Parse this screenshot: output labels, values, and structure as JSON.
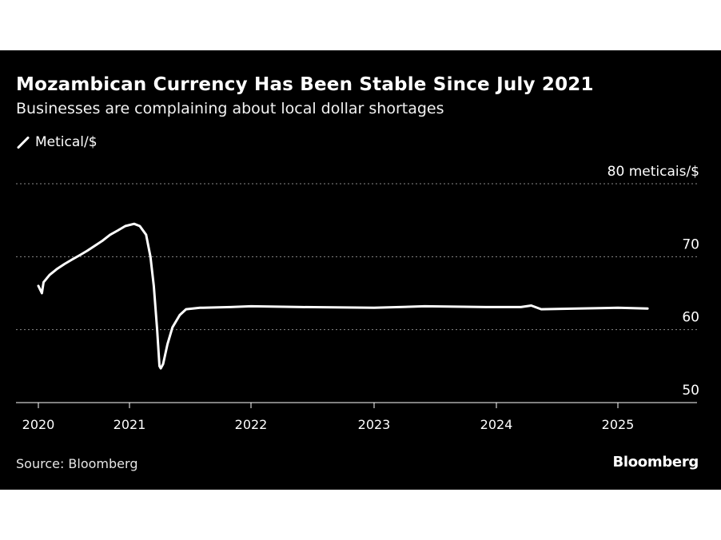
{
  "chart_data": {
    "type": "line",
    "title": "Mozambican Currency Has Been Stable Since July 2021",
    "subtitle": "Businesses are complaining about local dollar shortages",
    "legend": [
      "Metical/$"
    ],
    "ylabel_unit": "meticais/$",
    "ylim": [
      50,
      80
    ],
    "yticks": [
      50,
      60,
      70,
      80
    ],
    "ytick_labels": [
      "50",
      "60",
      "70",
      "80 meticais/$"
    ],
    "xticks": [
      "2020",
      "2021",
      "2022",
      "2023",
      "2024",
      "2025"
    ],
    "grid": true,
    "series": [
      {
        "name": "Metical/$",
        "color": "#ffffff",
        "points": [
          [
            "2020-01-01",
            66.0
          ],
          [
            "2020-01-15",
            65.0
          ],
          [
            "2020-01-22",
            66.5
          ],
          [
            "2020-02-15",
            67.5
          ],
          [
            "2020-03-15",
            68.3
          ],
          [
            "2020-04-15",
            69.0
          ],
          [
            "2020-05-15",
            69.6
          ],
          [
            "2020-06-15",
            70.2
          ],
          [
            "2020-07-15",
            70.8
          ],
          [
            "2020-08-15",
            71.5
          ],
          [
            "2020-09-15",
            72.2
          ],
          [
            "2020-10-15",
            73.0
          ],
          [
            "2020-11-15",
            73.6
          ],
          [
            "2020-12-15",
            74.2
          ],
          [
            "2021-01-15",
            74.5
          ],
          [
            "2021-02-01",
            74.2
          ],
          [
            "2021-02-20",
            73.0
          ],
          [
            "2021-03-05",
            70.0
          ],
          [
            "2021-03-15",
            66.0
          ],
          [
            "2021-03-25",
            60.0
          ],
          [
            "2021-04-01",
            55.0
          ],
          [
            "2021-04-05",
            54.7
          ],
          [
            "2021-04-12",
            55.3
          ],
          [
            "2021-04-25",
            58.0
          ],
          [
            "2021-05-10",
            60.3
          ],
          [
            "2021-06-01",
            62.0
          ],
          [
            "2021-06-20",
            62.8
          ],
          [
            "2021-08-01",
            63.0
          ],
          [
            "2021-11-01",
            63.1
          ],
          [
            "2022-01-01",
            63.2
          ],
          [
            "2022-06-01",
            63.1
          ],
          [
            "2023-01-01",
            63.0
          ],
          [
            "2023-06-01",
            63.2
          ],
          [
            "2023-12-01",
            63.1
          ],
          [
            "2024-03-15",
            63.1
          ],
          [
            "2024-04-15",
            63.3
          ],
          [
            "2024-05-15",
            62.8
          ],
          [
            "2024-09-01",
            62.9
          ],
          [
            "2025-01-01",
            63.0
          ],
          [
            "2025-03-31",
            62.9
          ]
        ]
      }
    ]
  },
  "footer": {
    "source": "Source: Bloomberg",
    "brand": "Bloomberg"
  }
}
